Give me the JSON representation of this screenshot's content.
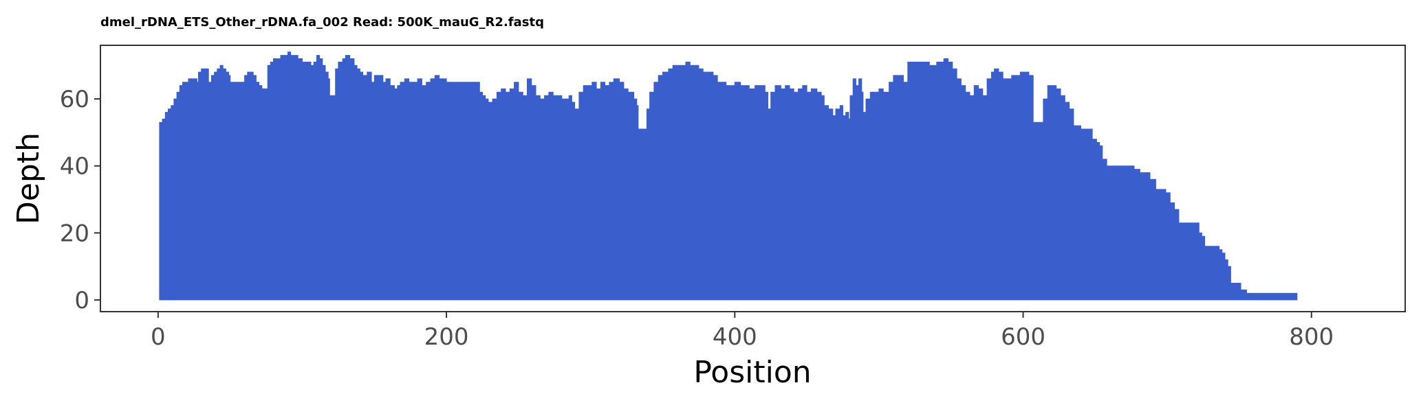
{
  "chart_data": {
    "type": "area",
    "title": "dmel_rDNA_ETS_Other_rDNA.fa_002 Read: 500K_mauG_R2.fastq",
    "xlabel": "Position",
    "ylabel": "Depth",
    "xlim": [
      -40,
      865
    ],
    "ylim": [
      -3.5,
      76
    ],
    "x_ticks": [
      0,
      200,
      400,
      600,
      800
    ],
    "y_ticks": [
      0,
      20,
      40,
      60
    ],
    "grid": false,
    "legend": "none",
    "fill_color": "#3a5fcd",
    "x_start": 1,
    "x_end": 790,
    "profile": [
      [
        1,
        53
      ],
      [
        3,
        54
      ],
      [
        5,
        56
      ],
      [
        7,
        57
      ],
      [
        9,
        58
      ],
      [
        11,
        60
      ],
      [
        13,
        62
      ],
      [
        15,
        64
      ],
      [
        17,
        65
      ],
      [
        19,
        65
      ],
      [
        21,
        66
      ],
      [
        23,
        66
      ],
      [
        25,
        66
      ],
      [
        27,
        65
      ],
      [
        28,
        68
      ],
      [
        30,
        69
      ],
      [
        32,
        69
      ],
      [
        34,
        69
      ],
      [
        35,
        65
      ],
      [
        37,
        67
      ],
      [
        39,
        68
      ],
      [
        41,
        69
      ],
      [
        43,
        70
      ],
      [
        45,
        69
      ],
      [
        47,
        68
      ],
      [
        49,
        67
      ],
      [
        50,
        65
      ],
      [
        52,
        65
      ],
      [
        55,
        65
      ],
      [
        58,
        65
      ],
      [
        60,
        67
      ],
      [
        62,
        68
      ],
      [
        64,
        68
      ],
      [
        66,
        67
      ],
      [
        68,
        65
      ],
      [
        70,
        64
      ],
      [
        72,
        63
      ],
      [
        74,
        63
      ],
      [
        76,
        70
      ],
      [
        78,
        71
      ],
      [
        80,
        72
      ],
      [
        83,
        72
      ],
      [
        85,
        73
      ],
      [
        88,
        73
      ],
      [
        90,
        74
      ],
      [
        92,
        73
      ],
      [
        95,
        73
      ],
      [
        97,
        72
      ],
      [
        100,
        71
      ],
      [
        103,
        71
      ],
      [
        106,
        70
      ],
      [
        108,
        71
      ],
      [
        110,
        73
      ],
      [
        112,
        72
      ],
      [
        114,
        70
      ],
      [
        116,
        68
      ],
      [
        118,
        66
      ],
      [
        119,
        61
      ],
      [
        121,
        61
      ],
      [
        123,
        69
      ],
      [
        125,
        71
      ],
      [
        128,
        72
      ],
      [
        130,
        73
      ],
      [
        133,
        72
      ],
      [
        136,
        70
      ],
      [
        138,
        69
      ],
      [
        140,
        68
      ],
      [
        142,
        67
      ],
      [
        145,
        68
      ],
      [
        148,
        65
      ],
      [
        150,
        67
      ],
      [
        153,
        67
      ],
      [
        156,
        65
      ],
      [
        158,
        66
      ],
      [
        161,
        64
      ],
      [
        164,
        63
      ],
      [
        166,
        64
      ],
      [
        168,
        65
      ],
      [
        171,
        66
      ],
      [
        174,
        65
      ],
      [
        177,
        65
      ],
      [
        180,
        66
      ],
      [
        183,
        64
      ],
      [
        186,
        65
      ],
      [
        189,
        66
      ],
      [
        192,
        67
      ],
      [
        195,
        66
      ],
      [
        198,
        66
      ],
      [
        200,
        65
      ],
      [
        205,
        65
      ],
      [
        210,
        65
      ],
      [
        215,
        65
      ],
      [
        220,
        65
      ],
      [
        223,
        62
      ],
      [
        225,
        61
      ],
      [
        227,
        60
      ],
      [
        229,
        59
      ],
      [
        232,
        60
      ],
      [
        235,
        62
      ],
      [
        238,
        63
      ],
      [
        241,
        62
      ],
      [
        244,
        63
      ],
      [
        247,
        65
      ],
      [
        250,
        62
      ],
      [
        253,
        61
      ],
      [
        256,
        66
      ],
      [
        259,
        64
      ],
      [
        262,
        61
      ],
      [
        265,
        60
      ],
      [
        268,
        61
      ],
      [
        271,
        62
      ],
      [
        274,
        61
      ],
      [
        277,
        61
      ],
      [
        280,
        60
      ],
      [
        282,
        60
      ],
      [
        285,
        61
      ],
      [
        287,
        59
      ],
      [
        289,
        57
      ],
      [
        291,
        57
      ],
      [
        292,
        62
      ],
      [
        295,
        64
      ],
      [
        298,
        64
      ],
      [
        301,
        65
      ],
      [
        304,
        63
      ],
      [
        307,
        65
      ],
      [
        310,
        64
      ],
      [
        313,
        65
      ],
      [
        316,
        66
      ],
      [
        320,
        65
      ],
      [
        323,
        63
      ],
      [
        326,
        62
      ],
      [
        328,
        62
      ],
      [
        330,
        60
      ],
      [
        332,
        58
      ],
      [
        333,
        51
      ],
      [
        337,
        51
      ],
      [
        339,
        57
      ],
      [
        341,
        62
      ],
      [
        344,
        65
      ],
      [
        347,
        67
      ],
      [
        350,
        68
      ],
      [
        354,
        69
      ],
      [
        357,
        70
      ],
      [
        360,
        70
      ],
      [
        363,
        70
      ],
      [
        366,
        71
      ],
      [
        369,
        70
      ],
      [
        372,
        70
      ],
      [
        375,
        69
      ],
      [
        378,
        68
      ],
      [
        381,
        68
      ],
      [
        385,
        67
      ],
      [
        388,
        65
      ],
      [
        391,
        65
      ],
      [
        394,
        64
      ],
      [
        397,
        64
      ],
      [
        400,
        65
      ],
      [
        404,
        64
      ],
      [
        407,
        64
      ],
      [
        410,
        63
      ],
      [
        414,
        64
      ],
      [
        417,
        64
      ],
      [
        421,
        62
      ],
      [
        423,
        57
      ],
      [
        425,
        62
      ],
      [
        428,
        64
      ],
      [
        432,
        63
      ],
      [
        435,
        64
      ],
      [
        438,
        63
      ],
      [
        441,
        62
      ],
      [
        444,
        63
      ],
      [
        447,
        64
      ],
      [
        450,
        62
      ],
      [
        453,
        63
      ],
      [
        457,
        62
      ],
      [
        460,
        61
      ],
      [
        462,
        58
      ],
      [
        465,
        57
      ],
      [
        468,
        55
      ],
      [
        470,
        57
      ],
      [
        473,
        58
      ],
      [
        475,
        55
      ],
      [
        477,
        56
      ],
      [
        479,
        54
      ],
      [
        480,
        61
      ],
      [
        482,
        66
      ],
      [
        484,
        64
      ],
      [
        486,
        66
      ],
      [
        488,
        62
      ],
      [
        489,
        56
      ],
      [
        491,
        60
      ],
      [
        494,
        62
      ],
      [
        497,
        62
      ],
      [
        500,
        63
      ],
      [
        503,
        62
      ],
      [
        507,
        65
      ],
      [
        510,
        67
      ],
      [
        514,
        67
      ],
      [
        517,
        65
      ],
      [
        520,
        71
      ],
      [
        525,
        71
      ],
      [
        530,
        71
      ],
      [
        535,
        70
      ],
      [
        540,
        71
      ],
      [
        545,
        72
      ],
      [
        548,
        71
      ],
      [
        551,
        69
      ],
      [
        554,
        66
      ],
      [
        557,
        64
      ],
      [
        560,
        62
      ],
      [
        563,
        61
      ],
      [
        566,
        64
      ],
      [
        569,
        63
      ],
      [
        572,
        61
      ],
      [
        575,
        66
      ],
      [
        578,
        68
      ],
      [
        580,
        69
      ],
      [
        583,
        68
      ],
      [
        586,
        66
      ],
      [
        589,
        66
      ],
      [
        592,
        67
      ],
      [
        595,
        67
      ],
      [
        598,
        68
      ],
      [
        601,
        68
      ],
      [
        604,
        67
      ],
      [
        607,
        53
      ],
      [
        610,
        53
      ],
      [
        612,
        53
      ],
      [
        614,
        60
      ],
      [
        617,
        64
      ],
      [
        620,
        64
      ],
      [
        623,
        63
      ],
      [
        626,
        61
      ],
      [
        629,
        59
      ],
      [
        632,
        57
      ],
      [
        635,
        52
      ],
      [
        638,
        52
      ],
      [
        640,
        51
      ],
      [
        645,
        51
      ],
      [
        648,
        48
      ],
      [
        651,
        47
      ],
      [
        653,
        46
      ],
      [
        655,
        42
      ],
      [
        658,
        40
      ],
      [
        663,
        40
      ],
      [
        668,
        40
      ],
      [
        673,
        40
      ],
      [
        677,
        39
      ],
      [
        681,
        38
      ],
      [
        685,
        38
      ],
      [
        688,
        36
      ],
      [
        692,
        33
      ],
      [
        696,
        33
      ],
      [
        699,
        32
      ],
      [
        702,
        29
      ],
      [
        705,
        27
      ],
      [
        708,
        23
      ],
      [
        712,
        23
      ],
      [
        716,
        23
      ],
      [
        720,
        23
      ],
      [
        722,
        20
      ],
      [
        724,
        19
      ],
      [
        726,
        16
      ],
      [
        730,
        16
      ],
      [
        734,
        16
      ],
      [
        736,
        15
      ],
      [
        738,
        14
      ],
      [
        740,
        12
      ],
      [
        742,
        10
      ],
      [
        744,
        5
      ],
      [
        748,
        5
      ],
      [
        751,
        3
      ],
      [
        755,
        2
      ],
      [
        760,
        2
      ],
      [
        765,
        2
      ],
      [
        770,
        2
      ],
      [
        775,
        2
      ],
      [
        780,
        2
      ],
      [
        785,
        2
      ],
      [
        790,
        1
      ]
    ]
  }
}
